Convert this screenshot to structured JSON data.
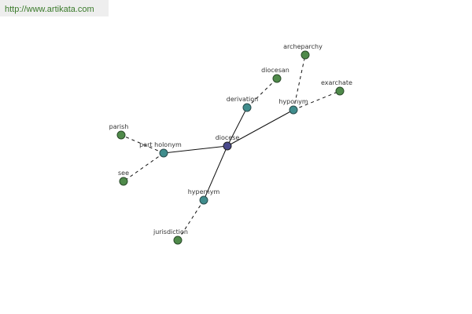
{
  "header": {
    "url": "http://www.artikata.com"
  },
  "nodes": [
    {
      "label": "diocese"
    },
    {
      "label": "derivation"
    },
    {
      "label": "diocesan"
    },
    {
      "label": "hyponym"
    },
    {
      "label": "archeparchy"
    },
    {
      "label": "exarchate"
    },
    {
      "label": "part holonym"
    },
    {
      "label": "parish"
    },
    {
      "label": "see"
    },
    {
      "label": "hypernym"
    },
    {
      "label": "jurisdiction"
    }
  ]
}
